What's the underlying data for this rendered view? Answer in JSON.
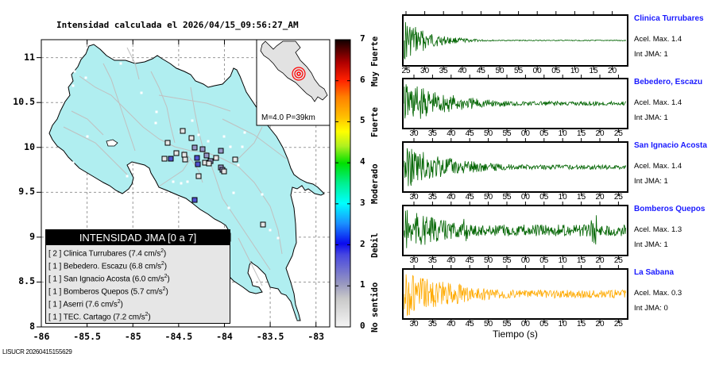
{
  "title": "Intensidad calculada el 2026/04/15_09:56:27_AM",
  "map": {
    "y_ticks": [
      "11",
      "10.5",
      "10",
      "9.5",
      "9",
      "8.5",
      "8"
    ],
    "x_ticks": [
      "-86",
      "-85.5",
      "-85",
      "-84.5",
      "-84",
      "-83.5",
      "-83"
    ],
    "land_color": "#b0eef0",
    "road_color": "#bfbfbf"
  },
  "inset": {
    "label": "M=4.0 P=39km",
    "epicenter_color": "#ff0000"
  },
  "legend": {
    "header": "INTENSIDAD JMA [0 a 7]",
    "items": [
      {
        "level": "[ 2 ]",
        "station": "Clinica Turrubares",
        "accel": "(7.4 cm/s",
        "sup": "2",
        "close": ")"
      },
      {
        "level": "[ 1 ]",
        "station": "Bebedero. Escazu",
        "accel": "(6.8 cm/s",
        "sup": "2",
        "close": ")"
      },
      {
        "level": "[ 1 ]",
        "station": "San Ignacio Acosta",
        "accel": "(6.0 cm/s",
        "sup": "2",
        "close": ")"
      },
      {
        "level": "[ 1 ]",
        "station": "Bomberos Quepos",
        "accel": "(5.7 cm/s",
        "sup": "2",
        "close": ")"
      },
      {
        "level": "[ 1 ]",
        "station": "Aserri",
        "accel": "(7.6 cm/s",
        "sup": "2",
        "close": ")"
      },
      {
        "level": "[ 1 ]",
        "station": "TEC. Cartago",
        "accel": "(7.2 cm/s",
        "sup": "2",
        "close": ")"
      }
    ]
  },
  "colorbar": {
    "ticks": [
      "7",
      "6",
      "5",
      "4",
      "3",
      "2",
      "1",
      "0"
    ],
    "categories": [
      "Muy Fuerte",
      "Fuerte",
      "Moderado",
      "Debil",
      "No sentido"
    ]
  },
  "footer": "LISUCR 20260415155629",
  "traces": {
    "xlabel": "Tiempo (s)",
    "stations": [
      {
        "name": "Clinica Turrubares",
        "accel": "Acel. Max. 1.4",
        "jma": "Int JMA: 1",
        "color": "#006400",
        "ticks": [
          "25",
          "30",
          "35",
          "40",
          "45",
          "50",
          "55",
          "00",
          "05",
          "10",
          "15",
          "20"
        ]
      },
      {
        "name": "Bebedero, Escazu",
        "accel": "Acel. Max. 1.4",
        "jma": "Int JMA: 1",
        "color": "#006400",
        "ticks": [
          "30",
          "35",
          "40",
          "45",
          "50",
          "55",
          "00",
          "05",
          "10",
          "15",
          "20",
          "25"
        ]
      },
      {
        "name": "San Ignacio Acosta",
        "accel": "Acel. Max. 1.4",
        "jma": "Int JMA: 1",
        "color": "#006400",
        "ticks": [
          "30",
          "35",
          "40",
          "45",
          "50",
          "55",
          "00",
          "05",
          "10",
          "15",
          "20",
          "25"
        ]
      },
      {
        "name": "Bomberos Quepos",
        "accel": "Acel. Max. 1.3",
        "jma": "Int JMA: 1",
        "color": "#006400",
        "ticks": [
          "30",
          "35",
          "40",
          "45",
          "50",
          "55",
          "00",
          "05",
          "10",
          "15",
          "20",
          "25"
        ]
      },
      {
        "name": "La Sabana",
        "accel": "Acel. Max. 0.3",
        "jma": "Int JMA: 0",
        "color": "#ffaa00",
        "ticks": [
          "30",
          "35",
          "40",
          "45",
          "50",
          "55",
          "00",
          "05",
          "10",
          "15",
          "20",
          "25"
        ]
      }
    ]
  }
}
